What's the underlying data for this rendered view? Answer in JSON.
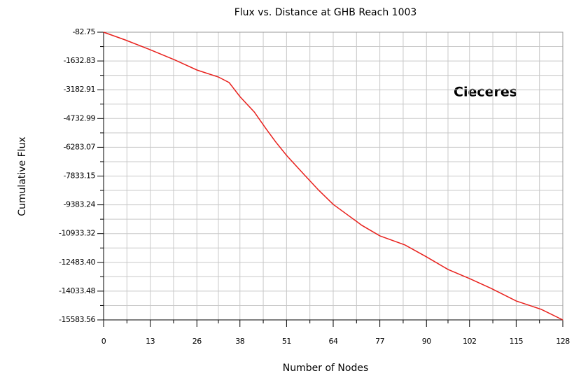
{
  "chart_data": {
    "type": "line",
    "title": "Flux vs. Distance at GHB Reach 1003",
    "x_label": "Number of Nodes",
    "y_label": "Cumulative Flux",
    "annotation": "Cieceres",
    "grid": true,
    "series": [
      {
        "name": "Flux",
        "color": "#e8201c",
        "x": [
          0,
          6,
          13,
          20,
          26,
          32,
          35,
          38,
          42,
          45,
          48,
          51,
          56,
          60,
          64,
          68,
          72,
          77,
          84,
          90,
          96,
          102,
          108,
          115,
          122,
          128
        ],
        "values": [
          -83,
          -498,
          -1026,
          -1591,
          -2119,
          -2497,
          -2798,
          -3552,
          -4382,
          -5211,
          -6003,
          -6720,
          -7776,
          -8605,
          -9359,
          -9924,
          -10490,
          -11056,
          -11546,
          -12187,
          -12866,
          -13356,
          -13884,
          -14563,
          -15015,
          -15584
        ]
      }
    ],
    "xlim": [
      0,
      128
    ],
    "xticks": [
      0,
      13,
      26,
      38,
      51,
      64,
      77,
      90,
      102,
      115,
      128
    ],
    "ylim": [
      -15583.56,
      -82.75
    ],
    "yticks": [
      -82.75,
      -1632.83,
      -3182.91,
      -4732.99,
      -6283.07,
      -7833.15,
      -9383.24,
      -10933.32,
      {
        "value": -12483.4,
        "label": "-12483.40"
      },
      -14033.48,
      -15583.56
    ]
  }
}
